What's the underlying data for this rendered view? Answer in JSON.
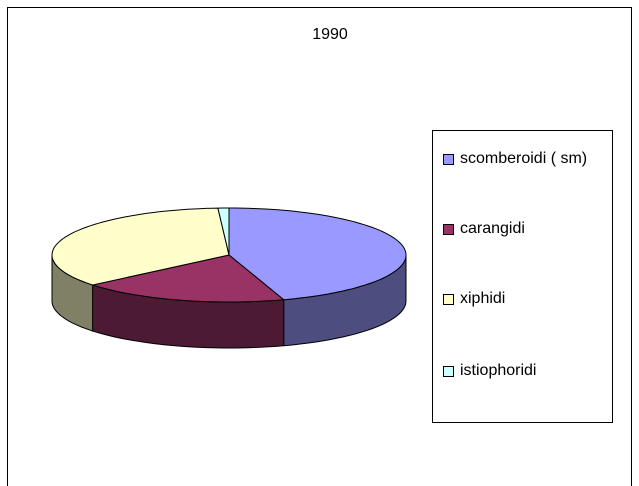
{
  "chart_data": {
    "type": "pie",
    "title": "1990",
    "categories": [
      "scomberoidi ( sm)",
      "carangidi",
      "xiphidi",
      "istiophoridi"
    ],
    "values": [
      45,
      19,
      35,
      1
    ],
    "colors": [
      "#9999ff",
      "#993366",
      "#ffffcc",
      "#ccffff"
    ],
    "legend": "right"
  }
}
